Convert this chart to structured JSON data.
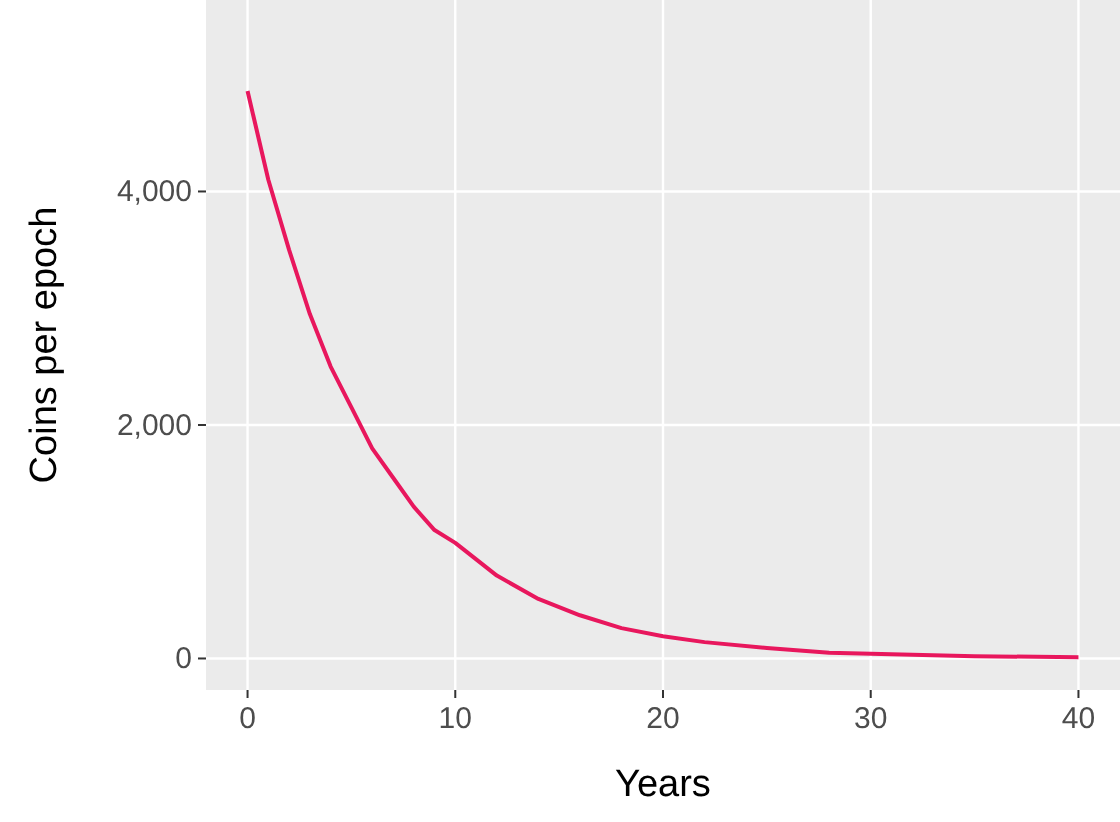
{
  "chart_data": {
    "type": "line",
    "xlabel": "Years",
    "ylabel": "Coins per epoch",
    "xlim": [
      -2,
      42
    ],
    "ylim": [
      -270,
      5640
    ],
    "xticks": [
      0,
      10,
      20,
      30,
      40
    ],
    "yticks": [
      0,
      {
        "value": 2000,
        "label": "2,000"
      },
      {
        "value": 4000,
        "label": "4,000"
      }
    ],
    "grid": true,
    "series": [
      {
        "color": "#e8175d",
        "x": [
          0,
          1,
          2,
          3,
          4,
          5,
          6,
          7,
          8,
          9,
          10,
          12,
          14,
          16,
          18,
          20,
          22,
          25,
          28,
          30,
          35,
          40
        ],
        "values": [
          4860,
          4100,
          3500,
          2950,
          2500,
          2150,
          1800,
          1550,
          1300,
          1100,
          990,
          710,
          510,
          370,
          260,
          190,
          140,
          90,
          50,
          40,
          20,
          10
        ]
      }
    ]
  }
}
